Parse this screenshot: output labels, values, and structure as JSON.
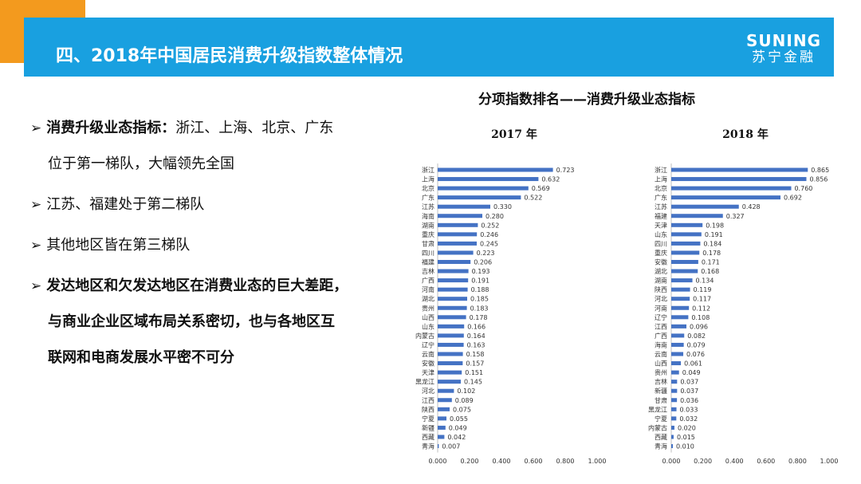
{
  "header": {
    "title": "四、2018年中国居民消费升级指数整体情况",
    "brand_en": "SUNING",
    "brand_cn": "苏宁金融"
  },
  "bullets": [
    {
      "bold": "消费升级业态指标：",
      "text": "浙江、上海、北京、广东",
      "cont": "位于第一梯队，大幅领先全国"
    },
    {
      "text": "江苏、福建处于第二梯队"
    },
    {
      "text": "其他地区皆在第三梯队"
    },
    {
      "bold": "发达地区和欠发达地区在消费业态的巨大差距，",
      "cont1": "与商业企业区域布局关系密切，也与各地区互",
      "cont2": "联网和电商发展水平密不可分"
    }
  ],
  "chart_heading": "分项指数排名——消费升级业态指标",
  "chart_data": [
    {
      "type": "bar",
      "orientation": "horizontal",
      "title": "2017 年",
      "xlim": [
        0,
        1
      ],
      "x_ticks": [
        "0.000",
        "0.200",
        "0.400",
        "0.600",
        "0.800",
        "1.000"
      ],
      "categories": [
        "浙江",
        "上海",
        "北京",
        "广东",
        "江苏",
        "海南",
        "湖南",
        "重庆",
        "甘肃",
        "四川",
        "福建",
        "吉林",
        "广西",
        "河南",
        "湖北",
        "贵州",
        "山西",
        "山东",
        "内蒙古",
        "辽宁",
        "云南",
        "安徽",
        "天津",
        "黑龙江",
        "河北",
        "江西",
        "陕西",
        "宁夏",
        "新疆",
        "西藏",
        "青海"
      ],
      "values": [
        0.723,
        0.632,
        0.569,
        0.522,
        0.33,
        0.28,
        0.252,
        0.246,
        0.245,
        0.223,
        0.206,
        0.193,
        0.191,
        0.188,
        0.185,
        0.183,
        0.178,
        0.166,
        0.164,
        0.163,
        0.158,
        0.157,
        0.151,
        0.145,
        0.102,
        0.089,
        0.075,
        0.055,
        0.049,
        0.042,
        0.007
      ],
      "labels": [
        "0.723",
        "0.632",
        "0.569",
        "0.522",
        "0.330",
        "0.280",
        "0.252",
        "0.246",
        "0.245",
        "0.223",
        "0.206",
        "0.193",
        "0.191",
        "0.188",
        "0.185",
        "0.183",
        "0.178",
        "0.166",
        "0.164",
        "0.163",
        "0.158",
        "0.157",
        "0.151",
        "0.145",
        "0.102",
        "0.089",
        "0.075",
        "0.055",
        "0.049",
        "0.042",
        "0.007"
      ],
      "bar_color": "#4472c4"
    },
    {
      "type": "bar",
      "orientation": "horizontal",
      "title": "2018 年",
      "xlim": [
        0,
        1
      ],
      "x_ticks": [
        "0.000",
        "0.200",
        "0.400",
        "0.600",
        "0.800",
        "1.000"
      ],
      "categories": [
        "浙江",
        "上海",
        "北京",
        "广东",
        "江苏",
        "福建",
        "天津",
        "山东",
        "四川",
        "重庆",
        "安徽",
        "湖北",
        "湖南",
        "陕西",
        "河北",
        "河南",
        "辽宁",
        "江西",
        "广西",
        "海南",
        "云南",
        "山西",
        "贵州",
        "吉林",
        "新疆",
        "甘肃",
        "黑龙江",
        "宁夏",
        "内蒙古",
        "西藏",
        "青海"
      ],
      "values": [
        0.865,
        0.856,
        0.76,
        0.692,
        0.428,
        0.327,
        0.198,
        0.191,
        0.184,
        0.178,
        0.171,
        0.168,
        0.134,
        0.119,
        0.117,
        0.112,
        0.108,
        0.096,
        0.082,
        0.079,
        0.076,
        0.061,
        0.049,
        0.037,
        0.037,
        0.036,
        0.033,
        0.032,
        0.02,
        0.015,
        0.01
      ],
      "labels": [
        "0.865",
        "0.856",
        "0.760",
        "0.692",
        "0.428",
        "0.327",
        "0.198",
        "0.191",
        "0.184",
        "0.178",
        "0.171",
        "0.168",
        "0.134",
        "0.119",
        "0.117",
        "0.112",
        "0.108",
        "0.096",
        "0.082",
        "0.079",
        "0.076",
        "0.061",
        "0.049",
        "0.037",
        "0.037",
        "0.036",
        "0.033",
        "0.032",
        "0.020",
        "0.015",
        "0.010"
      ],
      "bar_color": "#4472c4"
    }
  ]
}
